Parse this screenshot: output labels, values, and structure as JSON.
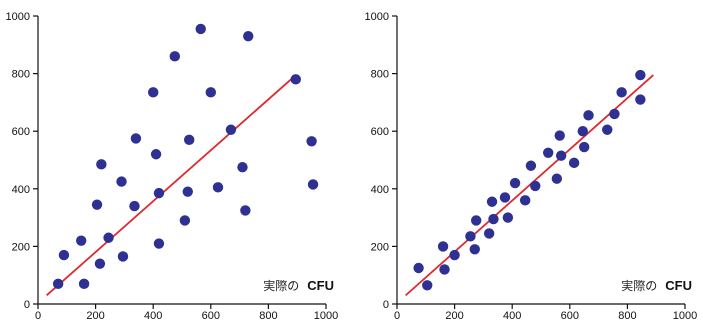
{
  "chart_data": [
    {
      "type": "scatter",
      "xlabel_prefix": "実際の",
      "xlabel_bold": "CFU",
      "xlim": [
        0,
        1000
      ],
      "ylim": [
        0,
        1000
      ],
      "x_ticks": [
        0,
        200,
        400,
        600,
        800,
        1000
      ],
      "y_ticks": [
        0,
        200,
        400,
        600,
        800,
        1000
      ],
      "marker_color": "#2e3192",
      "line_color": "#e0282e",
      "fit_line": [
        [
          30,
          30
        ],
        [
          890,
          790
        ]
      ],
      "points": [
        [
          70,
          70
        ],
        [
          90,
          170
        ],
        [
          150,
          220
        ],
        [
          160,
          70
        ],
        [
          205,
          345
        ],
        [
          215,
          140
        ],
        [
          220,
          485
        ],
        [
          245,
          230
        ],
        [
          290,
          425
        ],
        [
          295,
          165
        ],
        [
          335,
          340
        ],
        [
          340,
          575
        ],
        [
          400,
          735
        ],
        [
          410,
          520
        ],
        [
          420,
          385
        ],
        [
          420,
          210
        ],
        [
          475,
          860
        ],
        [
          510,
          290
        ],
        [
          520,
          390
        ],
        [
          525,
          570
        ],
        [
          565,
          955
        ],
        [
          600,
          735
        ],
        [
          625,
          405
        ],
        [
          670,
          605
        ],
        [
          710,
          475
        ],
        [
          720,
          325
        ],
        [
          730,
          930
        ],
        [
          895,
          780
        ],
        [
          950,
          565
        ],
        [
          955,
          415
        ]
      ]
    },
    {
      "type": "scatter",
      "xlabel_prefix": "実際の",
      "xlabel_bold": "CFU",
      "xlim": [
        0,
        1000
      ],
      "ylim": [
        0,
        1000
      ],
      "x_ticks": [
        0,
        200,
        400,
        600,
        800,
        1000
      ],
      "y_ticks": [
        0,
        200,
        400,
        600,
        800,
        1000
      ],
      "marker_color": "#2e3192",
      "line_color": "#e0282e",
      "fit_line": [
        [
          30,
          30
        ],
        [
          890,
          795
        ]
      ],
      "points": [
        [
          75,
          125
        ],
        [
          105,
          65
        ],
        [
          160,
          200
        ],
        [
          165,
          120
        ],
        [
          200,
          170
        ],
        [
          255,
          235
        ],
        [
          270,
          190
        ],
        [
          275,
          290
        ],
        [
          320,
          245
        ],
        [
          330,
          355
        ],
        [
          335,
          295
        ],
        [
          375,
          370
        ],
        [
          385,
          300
        ],
        [
          410,
          420
        ],
        [
          445,
          360
        ],
        [
          465,
          480
        ],
        [
          480,
          410
        ],
        [
          525,
          525
        ],
        [
          555,
          435
        ],
        [
          565,
          585
        ],
        [
          570,
          515
        ],
        [
          615,
          490
        ],
        [
          645,
          600
        ],
        [
          650,
          545
        ],
        [
          665,
          655
        ],
        [
          730,
          605
        ],
        [
          755,
          660
        ],
        [
          780,
          735
        ],
        [
          845,
          795
        ],
        [
          845,
          710
        ]
      ]
    }
  ]
}
